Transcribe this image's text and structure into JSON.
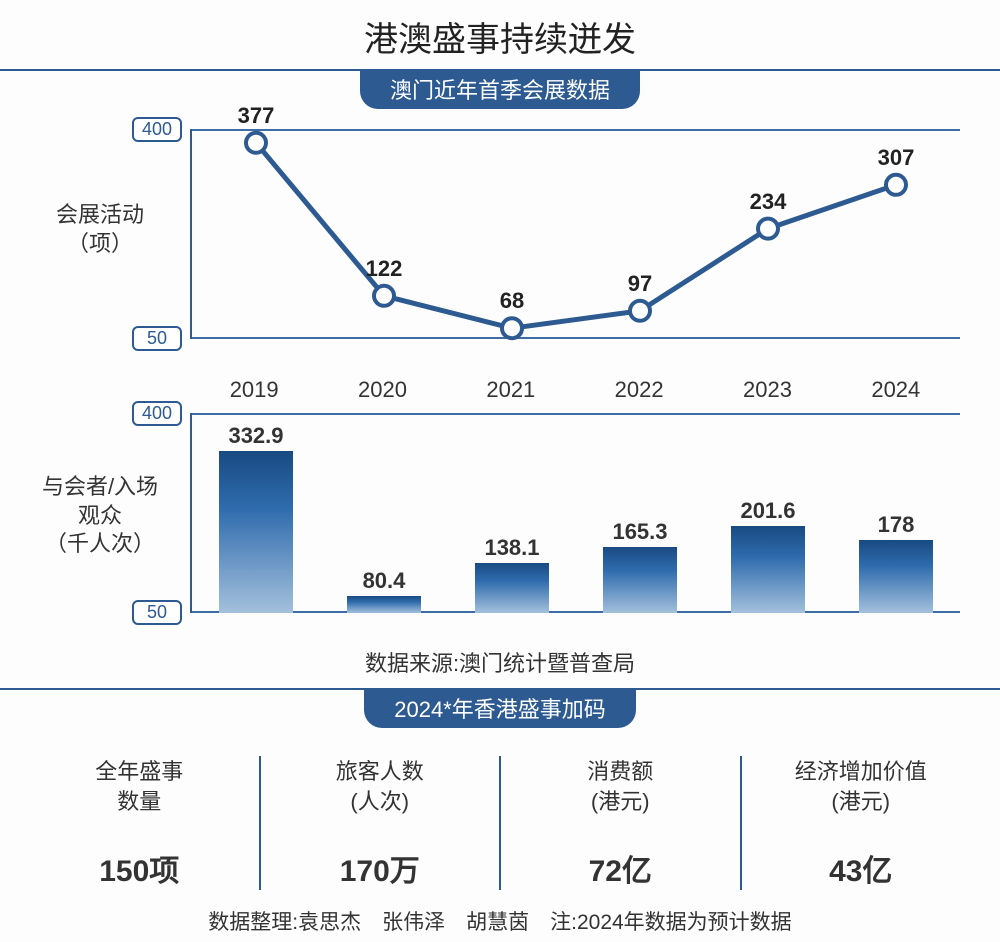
{
  "title": "港澳盛事持续迸发",
  "section1": {
    "pill": "澳门近年首季会展数据",
    "years": [
      "2019",
      "2020",
      "2021",
      "2022",
      "2023",
      "2024"
    ],
    "line": {
      "axis_label": "会展活动\n（项）",
      "ymin": 50,
      "ymax": 400,
      "ytick_low": "50",
      "ytick_high": "400",
      "values": [
        377,
        122,
        68,
        97,
        234,
        307
      ],
      "line_color": "#2c5a91",
      "line_width": 5,
      "marker_fill": "#ffffff",
      "marker_stroke": "#2c5a91",
      "marker_r": 10,
      "label_fontsize": 22,
      "label_weight": 700
    },
    "bar": {
      "axis_label": "与会者/入场观众\n（千人次）",
      "ymin": 50,
      "ymax": 400,
      "ytick_low": "50",
      "ytick_high": "400",
      "values": [
        332.9,
        80.4,
        138.1,
        165.3,
        201.6,
        178
      ],
      "gradient_top": "#194a82",
      "gradient_mid": "#2e6bad",
      "gradient_bot": "#a4c0dc",
      "bar_width_pct": 58,
      "label_fontsize": 22
    },
    "source": "数据来源:澳门统计暨普查局"
  },
  "section2": {
    "pill": "2024*年香港盛事加码",
    "stats": [
      {
        "title": "全年盛事\n数量",
        "value": "150项"
      },
      {
        "title": "旅客人数\n(人次)",
        "value": "170万"
      },
      {
        "title": "消费额\n(港元)",
        "value": "72亿"
      },
      {
        "title": "经济增加价值\n(港元)",
        "value": "43亿"
      }
    ],
    "footnote": "数据整理:袁思杰　张伟泽　胡慧茵　注:2024年数据为预计数据"
  },
  "colors": {
    "accent": "#2c5a91",
    "text": "#333333",
    "background": "#fdfdfd"
  }
}
